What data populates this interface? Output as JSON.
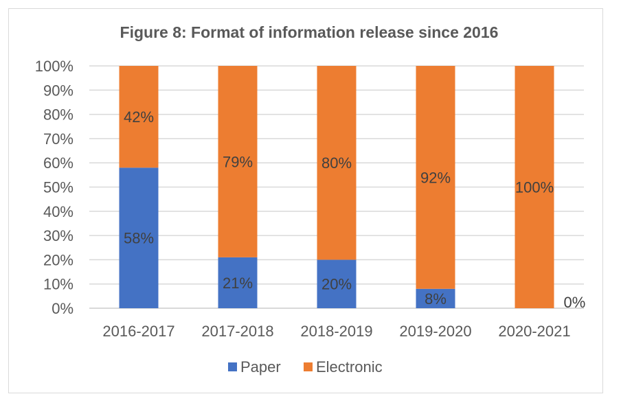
{
  "chart_data": {
    "type": "bar",
    "stacked": true,
    "title": "Figure 8: Format of information release since 2016",
    "categories": [
      "2016-2017",
      "2017-2018",
      "2018-2019",
      "2019-2020",
      "2020-2021"
    ],
    "series": [
      {
        "name": "Paper",
        "values": [
          58,
          21,
          20,
          8,
          0
        ],
        "labels": [
          "58%",
          "21%",
          "20%",
          "8%",
          "0%"
        ],
        "color": "#4472c4"
      },
      {
        "name": "Electronic",
        "values": [
          42,
          79,
          80,
          92,
          100
        ],
        "labels": [
          "42%",
          "79%",
          "80%",
          "92%",
          "100%"
        ],
        "color": "#ed7d31"
      }
    ],
    "ylim": [
      0,
      100
    ],
    "yticks": [
      "0%",
      "10%",
      "20%",
      "30%",
      "40%",
      "50%",
      "60%",
      "70%",
      "80%",
      "90%",
      "100%"
    ],
    "grid": true,
    "legend": "bottom"
  }
}
